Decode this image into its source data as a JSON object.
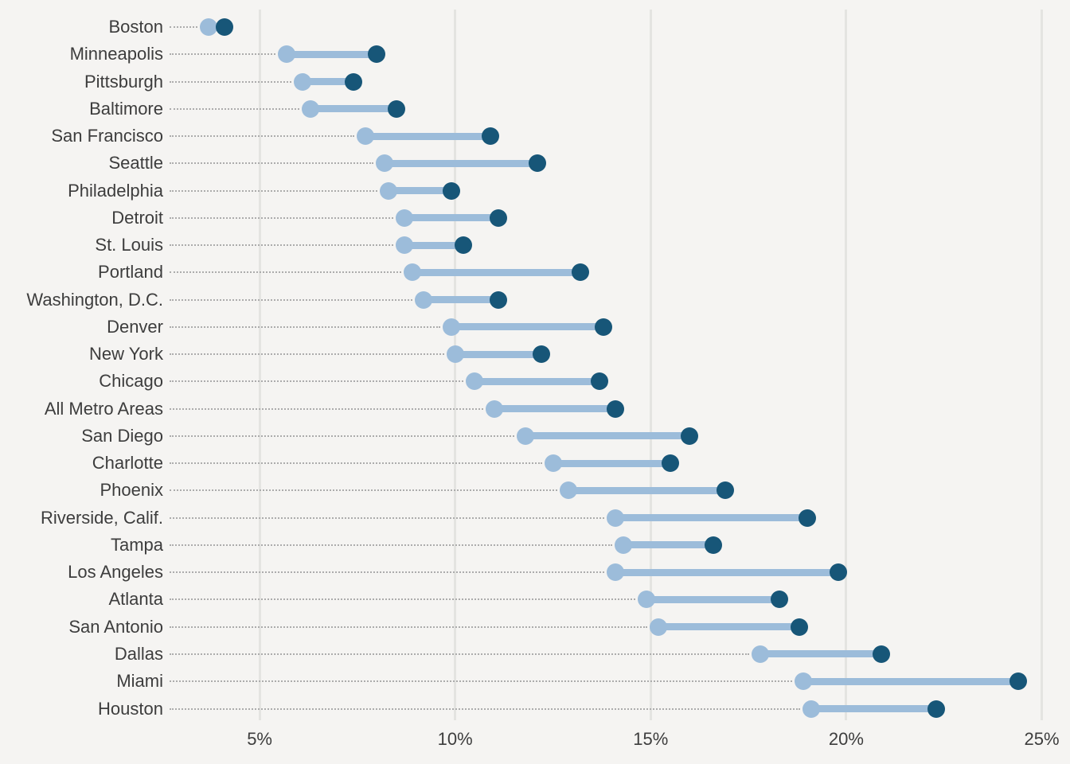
{
  "chart": {
    "background_color": "#f5f4f2",
    "grid_color": "#e4e4e1",
    "leader_line_color": "#acacac",
    "text_color": "#3d3d3d",
    "start_dot_color": "#9cbcda",
    "end_dot_color": "#175678"
  },
  "chart_data": {
    "type": "dumbbell",
    "title": "",
    "xlabel": "",
    "ylabel": "",
    "unit": "%",
    "xlim": [
      0,
      25.8
    ],
    "x_ticks": [
      5,
      10,
      15,
      20,
      25
    ],
    "x_tick_labels": [
      "5%",
      "10%",
      "15%",
      "20%",
      "25%"
    ],
    "grid": true,
    "legend": false,
    "categories": [
      "Boston",
      "Minneapolis",
      "Pittsburgh",
      "Baltimore",
      "San Francisco",
      "Seattle",
      "Philadelphia",
      "Detroit",
      "St. Louis",
      "Portland",
      "Washington, D.C.",
      "Denver",
      "New York",
      "Chicago",
      "All Metro Areas",
      "San Diego",
      "Charlotte",
      "Phoenix",
      "Riverside, Calif.",
      "Tampa",
      "Los Angeles",
      "Atlanta",
      "San Antonio",
      "Dallas",
      "Miami",
      "Houston"
    ],
    "series": [
      {
        "name": "start",
        "values": [
          3.7,
          5.7,
          6.1,
          6.3,
          7.7,
          8.2,
          8.3,
          8.7,
          8.7,
          8.9,
          9.2,
          9.9,
          10.0,
          10.5,
          11.0,
          11.8,
          12.5,
          12.9,
          14.1,
          14.3,
          14.1,
          14.9,
          15.2,
          17.8,
          18.9,
          19.1
        ]
      },
      {
        "name": "end",
        "values": [
          4.1,
          8.0,
          7.4,
          8.5,
          10.9,
          12.1,
          9.9,
          11.1,
          10.2,
          13.2,
          11.1,
          13.8,
          12.2,
          13.7,
          14.1,
          16.0,
          15.5,
          16.9,
          19.0,
          16.6,
          19.8,
          18.3,
          18.8,
          20.9,
          24.4,
          22.3
        ]
      }
    ]
  }
}
